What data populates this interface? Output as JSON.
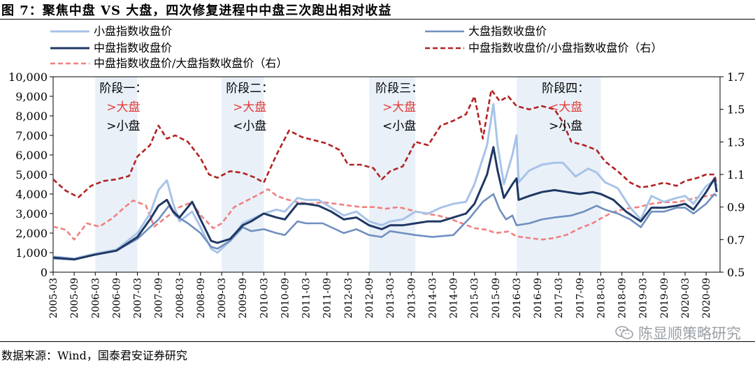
{
  "title": "图 7：聚焦中盘 VS 大盘，四次修复进程中中盘三次跑出相对收益",
  "source": "数据来源：Wind，国泰君安证券研究",
  "watermark": "陈显顺策略研究",
  "colors": {
    "small": "#a8c3e8",
    "large": "#6f8fbf",
    "mid": "#1f3864",
    "ratio_small": "#b22222",
    "ratio_large": "#f08080",
    "shade": "#e9f0f8",
    "red_text": "#e53935"
  },
  "chart_data": {
    "type": "line",
    "x_ticks": [
      "2005-03",
      "2005-09",
      "2006-03",
      "2006-09",
      "2007-03",
      "2007-09",
      "2008-03",
      "2008-09",
      "2009-03",
      "2009-09",
      "2010-03",
      "2010-09",
      "2011-03",
      "2011-09",
      "2012-03",
      "2012-09",
      "2013-03",
      "2013-09",
      "2014-03",
      "2014-09",
      "2015-03",
      "2015-09",
      "2016-03",
      "2016-09",
      "2017-03",
      "2017-09",
      "2018-03",
      "2018-09",
      "2019-03",
      "2019-09",
      "2020-03",
      "2020-09"
    ],
    "y_left": {
      "range": [
        0,
        10000
      ],
      "ticks": [
        "0",
        "1,000",
        "2,000",
        "3,000",
        "4,000",
        "5,000",
        "6,000",
        "7,000",
        "8,000",
        "9,000",
        "10,000"
      ]
    },
    "y_right": {
      "range": [
        0.5,
        1.7
      ],
      "ticks": [
        "0.5",
        "0.7",
        "0.9",
        "1.1",
        "1.3",
        "1.5",
        "1.7"
      ]
    },
    "legend": [
      {
        "key": "small",
        "label": "小盘指数收盘价"
      },
      {
        "key": "large",
        "label": "大盘指数收盘价"
      },
      {
        "key": "mid",
        "label": "中盘指数收盘价"
      },
      {
        "key": "ratio_small",
        "label": "中盘指数收盘价/小盘指数收盘价（右）"
      },
      {
        "key": "ratio_large",
        "label": "中盘指数收盘价/大盘指数收盘价（右）"
      }
    ],
    "phases": [
      {
        "label": "阶段一：",
        "start": 2006.0,
        "end": 2007.0,
        "vs_large": ">大盘",
        "vs_small": ">小盘"
      },
      {
        "label": "阶段二：",
        "start": 2009.0,
        "end": 2010.0,
        "vs_large": ">大盘",
        "vs_small": "<小盘"
      },
      {
        "label": "阶段三：",
        "start": 2012.5,
        "end": 2013.6,
        "vs_large": ">大盘",
        "vs_small": "<小盘"
      },
      {
        "label": "阶段四：",
        "start": 2016.0,
        "end": 2018.0,
        "vs_large": "<大盘",
        "vs_small": ">小盘"
      }
    ],
    "series": {
      "small": [
        [
          2005.0,
          800
        ],
        [
          2005.5,
          700
        ],
        [
          2006.0,
          950
        ],
        [
          2006.5,
          1150
        ],
        [
          2007.0,
          2000
        ],
        [
          2007.3,
          3000
        ],
        [
          2007.5,
          4200
        ],
        [
          2007.7,
          4700
        ],
        [
          2007.85,
          3500
        ],
        [
          2008.0,
          2600
        ],
        [
          2008.3,
          3100
        ],
        [
          2008.5,
          2300
        ],
        [
          2008.75,
          1200
        ],
        [
          2008.9,
          1000
        ],
        [
          2009.2,
          1600
        ],
        [
          2009.5,
          2500
        ],
        [
          2009.7,
          2700
        ],
        [
          2010.0,
          3000
        ],
        [
          2010.3,
          3200
        ],
        [
          2010.5,
          3100
        ],
        [
          2010.8,
          3800
        ],
        [
          2011.0,
          3700
        ],
        [
          2011.3,
          3700
        ],
        [
          2011.6,
          3300
        ],
        [
          2011.9,
          2900
        ],
        [
          2012.2,
          3100
        ],
        [
          2012.5,
          2600
        ],
        [
          2012.8,
          2400
        ],
        [
          2013.0,
          2600
        ],
        [
          2013.3,
          2700
        ],
        [
          2013.6,
          3100
        ],
        [
          2013.9,
          3000
        ],
        [
          2014.2,
          3300
        ],
        [
          2014.5,
          3500
        ],
        [
          2014.8,
          3600
        ],
        [
          2015.0,
          4500
        ],
        [
          2015.3,
          6500
        ],
        [
          2015.45,
          8600
        ],
        [
          2015.55,
          6500
        ],
        [
          2015.7,
          4500
        ],
        [
          2015.9,
          6000
        ],
        [
          2016.0,
          7000
        ],
        [
          2016.05,
          4600
        ],
        [
          2016.3,
          5200
        ],
        [
          2016.6,
          5500
        ],
        [
          2016.9,
          5600
        ],
        [
          2017.1,
          5600
        ],
        [
          2017.4,
          4900
        ],
        [
          2017.7,
          5300
        ],
        [
          2017.9,
          5100
        ],
        [
          2018.1,
          4600
        ],
        [
          2018.4,
          4300
        ],
        [
          2018.7,
          3300
        ],
        [
          2018.95,
          2700
        ],
        [
          2019.2,
          3900
        ],
        [
          2019.5,
          3600
        ],
        [
          2019.8,
          3800
        ],
        [
          2020.0,
          3900
        ],
        [
          2020.2,
          3500
        ],
        [
          2020.5,
          4400
        ],
        [
          2020.7,
          4700
        ],
        [
          2020.75,
          4400
        ]
      ],
      "large": [
        [
          2005.0,
          700
        ],
        [
          2005.5,
          650
        ],
        [
          2006.0,
          900
        ],
        [
          2006.5,
          1100
        ],
        [
          2007.0,
          1700
        ],
        [
          2007.3,
          2300
        ],
        [
          2007.5,
          2700
        ],
        [
          2007.75,
          3400
        ],
        [
          2007.9,
          2900
        ],
        [
          2008.2,
          2500
        ],
        [
          2008.5,
          2000
        ],
        [
          2008.75,
          1300
        ],
        [
          2008.9,
          1200
        ],
        [
          2009.2,
          1600
        ],
        [
          2009.5,
          2300
        ],
        [
          2009.7,
          2100
        ],
        [
          2010.0,
          2200
        ],
        [
          2010.3,
          2000
        ],
        [
          2010.5,
          1900
        ],
        [
          2010.8,
          2600
        ],
        [
          2011.0,
          2500
        ],
        [
          2011.4,
          2500
        ],
        [
          2011.9,
          2000
        ],
        [
          2012.2,
          2200
        ],
        [
          2012.5,
          1900
        ],
        [
          2012.8,
          1800
        ],
        [
          2013.0,
          2100
        ],
        [
          2013.3,
          2000
        ],
        [
          2013.6,
          1900
        ],
        [
          2014.0,
          1800
        ],
        [
          2014.5,
          1900
        ],
        [
          2014.9,
          2800
        ],
        [
          2015.2,
          3600
        ],
        [
          2015.45,
          4000
        ],
        [
          2015.6,
          3200
        ],
        [
          2015.75,
          2700
        ],
        [
          2015.9,
          2900
        ],
        [
          2016.0,
          2400
        ],
        [
          2016.3,
          2500
        ],
        [
          2016.6,
          2700
        ],
        [
          2016.9,
          2800
        ],
        [
          2017.3,
          2900
        ],
        [
          2017.6,
          3100
        ],
        [
          2017.9,
          3400
        ],
        [
          2018.1,
          3200
        ],
        [
          2018.4,
          3000
        ],
        [
          2018.7,
          2700
        ],
        [
          2018.95,
          2300
        ],
        [
          2019.2,
          3100
        ],
        [
          2019.5,
          3100
        ],
        [
          2019.8,
          3300
        ],
        [
          2020.0,
          3300
        ],
        [
          2020.2,
          3000
        ],
        [
          2020.5,
          3500
        ],
        [
          2020.7,
          4000
        ],
        [
          2020.75,
          3900
        ]
      ],
      "mid": [
        [
          2005.0,
          750
        ],
        [
          2005.5,
          650
        ],
        [
          2006.0,
          900
        ],
        [
          2006.5,
          1100
        ],
        [
          2007.0,
          1800
        ],
        [
          2007.3,
          2700
        ],
        [
          2007.5,
          3400
        ],
        [
          2007.7,
          3700
        ],
        [
          2007.85,
          3100
        ],
        [
          2008.0,
          2800
        ],
        [
          2008.3,
          3600
        ],
        [
          2008.5,
          2700
        ],
        [
          2008.75,
          1600
        ],
        [
          2008.9,
          1500
        ],
        [
          2009.2,
          1700
        ],
        [
          2009.5,
          2400
        ],
        [
          2009.7,
          2600
        ],
        [
          2010.0,
          3000
        ],
        [
          2010.3,
          2800
        ],
        [
          2010.5,
          2700
        ],
        [
          2010.8,
          3500
        ],
        [
          2011.0,
          3500
        ],
        [
          2011.3,
          3400
        ],
        [
          2011.6,
          3100
        ],
        [
          2011.9,
          2700
        ],
        [
          2012.2,
          2800
        ],
        [
          2012.5,
          2400
        ],
        [
          2012.8,
          2200
        ],
        [
          2013.0,
          2400
        ],
        [
          2013.3,
          2400
        ],
        [
          2013.6,
          2500
        ],
        [
          2013.9,
          2600
        ],
        [
          2014.2,
          2600
        ],
        [
          2014.5,
          2800
        ],
        [
          2014.8,
          3000
        ],
        [
          2015.0,
          3500
        ],
        [
          2015.3,
          5000
        ],
        [
          2015.45,
          6400
        ],
        [
          2015.55,
          5200
        ],
        [
          2015.7,
          3800
        ],
        [
          2015.9,
          4500
        ],
        [
          2016.0,
          4800
        ],
        [
          2016.05,
          3700
        ],
        [
          2016.3,
          3900
        ],
        [
          2016.6,
          4100
        ],
        [
          2016.9,
          4200
        ],
        [
          2017.2,
          4100
        ],
        [
          2017.5,
          4000
        ],
        [
          2017.8,
          4100
        ],
        [
          2018.0,
          4000
        ],
        [
          2018.3,
          3700
        ],
        [
          2018.6,
          3100
        ],
        [
          2018.95,
          2600
        ],
        [
          2019.2,
          3300
        ],
        [
          2019.5,
          3300
        ],
        [
          2019.8,
          3400
        ],
        [
          2020.0,
          3500
        ],
        [
          2020.2,
          3200
        ],
        [
          2020.5,
          4100
        ],
        [
          2020.7,
          4800
        ],
        [
          2020.75,
          4100
        ]
      ],
      "ratio_small": [
        [
          2005.0,
          1.07
        ],
        [
          2005.3,
          1.0
        ],
        [
          2005.6,
          0.96
        ],
        [
          2005.9,
          1.03
        ],
        [
          2006.2,
          1.06
        ],
        [
          2006.5,
          1.07
        ],
        [
          2006.8,
          1.09
        ],
        [
          2007.0,
          1.21
        ],
        [
          2007.3,
          1.28
        ],
        [
          2007.5,
          1.4
        ],
        [
          2007.7,
          1.32
        ],
        [
          2007.9,
          1.34
        ],
        [
          2008.2,
          1.3
        ],
        [
          2008.5,
          1.2
        ],
        [
          2008.7,
          1.1
        ],
        [
          2008.9,
          1.08
        ],
        [
          2009.2,
          1.12
        ],
        [
          2009.5,
          1.11
        ],
        [
          2009.8,
          1.08
        ],
        [
          2010.0,
          1.05
        ],
        [
          2010.3,
          1.22
        ],
        [
          2010.6,
          1.37
        ],
        [
          2010.9,
          1.33
        ],
        [
          2011.2,
          1.31
        ],
        [
          2011.5,
          1.29
        ],
        [
          2011.8,
          1.25
        ],
        [
          2012.0,
          1.16
        ],
        [
          2012.3,
          1.16
        ],
        [
          2012.6,
          1.14
        ],
        [
          2012.8,
          1.07
        ],
        [
          2013.0,
          1.12
        ],
        [
          2013.3,
          1.15
        ],
        [
          2013.6,
          1.3
        ],
        [
          2013.9,
          1.28
        ],
        [
          2014.2,
          1.4
        ],
        [
          2014.5,
          1.43
        ],
        [
          2014.8,
          1.47
        ],
        [
          2015.0,
          1.58
        ],
        [
          2015.2,
          1.32
        ],
        [
          2015.4,
          1.62
        ],
        [
          2015.6,
          1.55
        ],
        [
          2015.8,
          1.58
        ],
        [
          2016.0,
          1.52
        ],
        [
          2016.3,
          1.5
        ],
        [
          2016.6,
          1.52
        ],
        [
          2016.9,
          1.5
        ],
        [
          2017.1,
          1.42
        ],
        [
          2017.3,
          1.3
        ],
        [
          2017.6,
          1.28
        ],
        [
          2017.9,
          1.25
        ],
        [
          2018.1,
          1.18
        ],
        [
          2018.4,
          1.12
        ],
        [
          2018.7,
          1.05
        ],
        [
          2018.95,
          1.02
        ],
        [
          2019.2,
          1.03
        ],
        [
          2019.5,
          1.05
        ],
        [
          2019.8,
          1.03
        ],
        [
          2020.0,
          1.06
        ],
        [
          2020.3,
          1.08
        ],
        [
          2020.5,
          1.1
        ],
        [
          2020.7,
          1.1
        ],
        [
          2020.75,
          1.03
        ]
      ],
      "ratio_large": [
        [
          2005.0,
          0.78
        ],
        [
          2005.3,
          0.76
        ],
        [
          2005.5,
          0.7
        ],
        [
          2005.8,
          0.8
        ],
        [
          2006.1,
          0.78
        ],
        [
          2006.4,
          0.83
        ],
        [
          2006.7,
          0.9
        ],
        [
          2006.9,
          0.94
        ],
        [
          2007.2,
          0.91
        ],
        [
          2007.4,
          0.78
        ],
        [
          2007.6,
          0.82
        ],
        [
          2007.8,
          0.86
        ],
        [
          2008.0,
          0.9
        ],
        [
          2008.3,
          0.93
        ],
        [
          2008.5,
          0.85
        ],
        [
          2008.8,
          0.77
        ],
        [
          2009.0,
          0.8
        ],
        [
          2009.3,
          0.9
        ],
        [
          2009.6,
          0.94
        ],
        [
          2009.9,
          0.98
        ],
        [
          2010.1,
          1.01
        ],
        [
          2010.3,
          0.97
        ],
        [
          2010.5,
          0.95
        ],
        [
          2010.8,
          0.93
        ],
        [
          2011.1,
          0.92
        ],
        [
          2011.4,
          0.93
        ],
        [
          2011.7,
          0.92
        ],
        [
          2012.0,
          0.91
        ],
        [
          2012.3,
          0.9
        ],
        [
          2012.6,
          0.9
        ],
        [
          2012.9,
          0.89
        ],
        [
          2013.2,
          0.9
        ],
        [
          2013.5,
          0.88
        ],
        [
          2013.8,
          0.86
        ],
        [
          2014.1,
          0.85
        ],
        [
          2014.4,
          0.83
        ],
        [
          2014.7,
          0.8
        ],
        [
          2015.0,
          0.77
        ],
        [
          2015.3,
          0.76
        ],
        [
          2015.5,
          0.74
        ],
        [
          2015.8,
          0.75
        ],
        [
          2016.0,
          0.72
        ],
        [
          2016.3,
          0.71
        ],
        [
          2016.6,
          0.7
        ],
        [
          2016.9,
          0.71
        ],
        [
          2017.2,
          0.73
        ],
        [
          2017.5,
          0.77
        ],
        [
          2017.8,
          0.8
        ],
        [
          2018.0,
          0.83
        ],
        [
          2018.3,
          0.87
        ],
        [
          2018.6,
          0.89
        ],
        [
          2018.9,
          0.9
        ],
        [
          2019.2,
          0.92
        ],
        [
          2019.5,
          0.93
        ],
        [
          2019.8,
          0.93
        ],
        [
          2020.0,
          0.94
        ],
        [
          2020.3,
          0.96
        ],
        [
          2020.6,
          0.97
        ],
        [
          2020.75,
          0.98
        ]
      ]
    }
  }
}
